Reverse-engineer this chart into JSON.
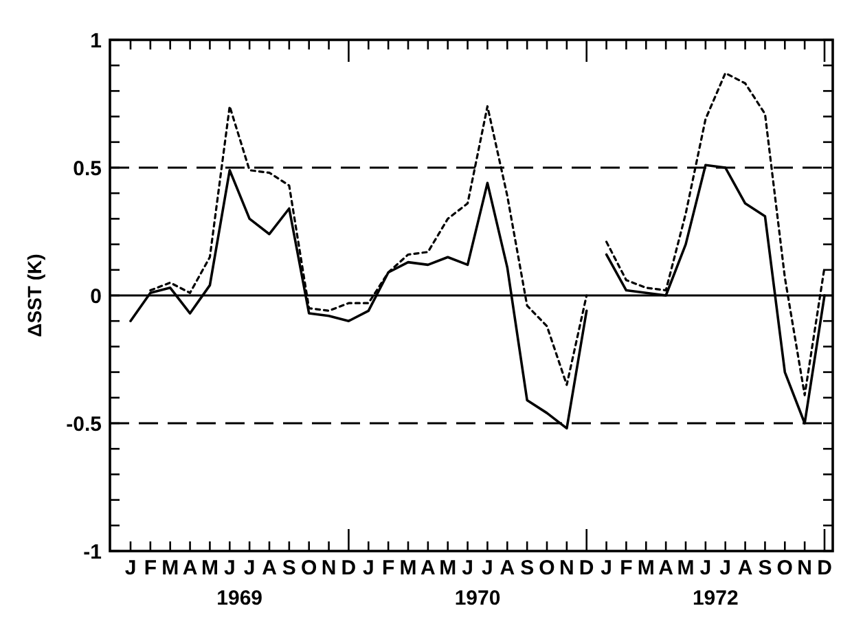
{
  "chart_data": {
    "type": "line",
    "ylabel": "ΔSST (K)",
    "categories": [
      "J",
      "F",
      "M",
      "A",
      "M",
      "J",
      "J",
      "A",
      "S",
      "O",
      "N",
      "D",
      "J",
      "F",
      "M",
      "A",
      "M",
      "J",
      "J",
      "A",
      "S",
      "O",
      "N",
      "D",
      "J",
      "F",
      "M",
      "A",
      "M",
      "J",
      "J",
      "A",
      "S",
      "O",
      "N",
      "D"
    ],
    "annotations": [
      "1969",
      "1970",
      "1972"
    ],
    "ylim": [
      -1,
      1
    ],
    "yticks": [
      {
        "value": -1,
        "label": "-1"
      },
      {
        "value": -0.9,
        "label": null
      },
      {
        "value": -0.8,
        "label": null
      },
      {
        "value": -0.7,
        "label": null
      },
      {
        "value": -0.6,
        "label": null
      },
      {
        "value": -0.5,
        "label": "-0.5"
      },
      {
        "value": -0.4,
        "label": null
      },
      {
        "value": -0.3,
        "label": null
      },
      {
        "value": -0.2,
        "label": null
      },
      {
        "value": -0.1,
        "label": null
      },
      0,
      {
        "value": 0.1,
        "label": null
      },
      {
        "value": 0.2,
        "label": null
      },
      {
        "value": 0.3,
        "label": null
      },
      {
        "value": 0.4,
        "label": null
      },
      0.5,
      {
        "value": 0.6,
        "label": null
      },
      {
        "value": 0.7,
        "label": null
      },
      {
        "value": 0.8,
        "label": null
      },
      {
        "value": 0.9,
        "label": null
      },
      1
    ],
    "ref_lines": [
      {
        "axis": "y",
        "value": 0,
        "line_style": "solid",
        "color": "#000000"
      },
      {
        "axis": "y",
        "value": 0.5,
        "line_style": "dashed",
        "color": "#000000"
      },
      {
        "axis": "y",
        "value": -0.5,
        "line_style": "dashed",
        "color": "#000000"
      }
    ],
    "series": [
      {
        "color": "#000000",
        "line_style": "solid",
        "values": [
          -0.1,
          0.01,
          0.03,
          -0.07,
          0.04,
          0.49,
          0.3,
          0.24,
          0.34,
          -0.07,
          -0.08,
          -0.1,
          -0.06,
          0.09,
          0.13,
          0.12,
          0.15,
          0.12,
          0.44,
          0.11,
          -0.41,
          -0.46,
          -0.52,
          -0.06,
          null,
          null,
          null,
          null,
          null,
          null,
          null,
          null,
          null,
          null,
          null,
          null
        ]
      },
      {
        "color": "#000000",
        "line_style": "solid",
        "values": [
          null,
          null,
          null,
          null,
          null,
          null,
          null,
          null,
          null,
          null,
          null,
          null,
          null,
          null,
          null,
          null,
          null,
          null,
          null,
          null,
          null,
          null,
          null,
          null,
          0.16,
          0.02,
          0.01,
          0,
          0.2,
          0.51,
          0.5,
          0.36,
          0.31,
          -0.3,
          -0.5,
          0
        ]
      },
      {
        "color": "#000000",
        "line_style": "dotted",
        "values": [
          null,
          0.02,
          0.05,
          0.01,
          0.15,
          0.74,
          0.49,
          0.48,
          0.43,
          -0.05,
          -0.06,
          -0.03,
          -0.03,
          0.09,
          0.16,
          0.17,
          0.3,
          0.36,
          0.74,
          0.39,
          -0.04,
          -0.12,
          -0.35,
          0,
          null,
          null,
          null,
          null,
          null,
          null,
          null,
          null,
          null,
          null,
          null,
          null
        ]
      },
      {
        "color": "#000000",
        "line_style": "dotted",
        "values": [
          null,
          null,
          null,
          null,
          null,
          null,
          null,
          null,
          null,
          null,
          null,
          null,
          null,
          null,
          null,
          null,
          null,
          null,
          null,
          null,
          null,
          null,
          null,
          null,
          0.21,
          0.06,
          0.03,
          0.02,
          0.32,
          0.69,
          0.87,
          0.83,
          0.71,
          0.07,
          -0.39,
          0.11
        ]
      }
    ]
  }
}
